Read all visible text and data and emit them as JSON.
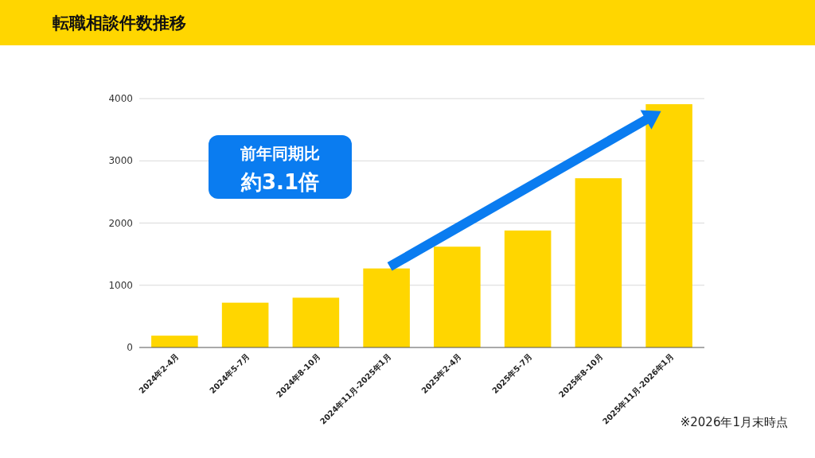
{
  "chart_data": {
    "type": "bar",
    "title": "転職相談件数推移",
    "categories": [
      "2024年2-4月",
      "2024年5-7月",
      "2024年8-10月",
      "2024年11月-2025年1月",
      "2025年2-4月",
      "2025年5-7月",
      "2025年8-10月",
      "2025年11月-2026年1月"
    ],
    "values": [
      190,
      720,
      800,
      1270,
      1620,
      1880,
      2720,
      3910
    ],
    "color": "#ffd600",
    "ylim": [
      0,
      4000
    ],
    "yticks": [
      0,
      1000,
      2000,
      3000,
      4000
    ],
    "grid": "y",
    "legend": false,
    "annotations": [
      "前年同期比",
      "約3.1倍",
      "※2026年1月末時点"
    ]
  }
}
